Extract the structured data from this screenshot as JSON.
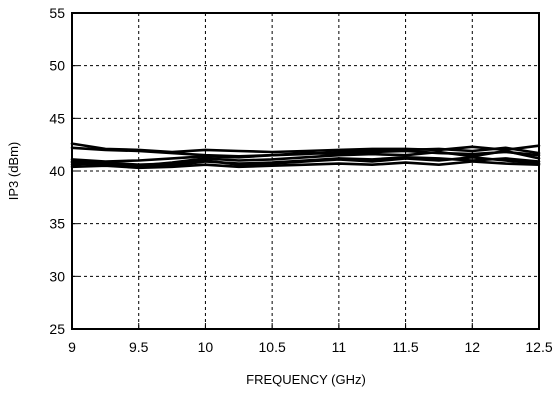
{
  "chart_data": {
    "type": "line",
    "title": "",
    "xlabel": "FREQUENCY (GHz)",
    "ylabel": "IP3  (dBm)",
    "xlim": [
      9,
      12.5
    ],
    "ylim": [
      25,
      55
    ],
    "grid": true,
    "x_ticks": [
      "9",
      "9.5",
      "10",
      "10.5",
      "11",
      "11.5",
      "12",
      "12.5"
    ],
    "y_ticks": [
      "25",
      "30",
      "35",
      "40",
      "45",
      "50",
      "55"
    ],
    "x": [
      9.0,
      9.25,
      9.5,
      9.75,
      10.0,
      10.25,
      10.5,
      10.75,
      11.0,
      11.25,
      11.5,
      11.75,
      12.0,
      12.25,
      12.5
    ],
    "series": [
      {
        "values": [
          42.6,
          42.1,
          42.0,
          41.8,
          42.0,
          41.9,
          41.8,
          41.9,
          42.0,
          42.1,
          42.1,
          42.0,
          42.3,
          42.0,
          42.4
        ]
      },
      {
        "values": [
          42.2,
          42.0,
          41.9,
          41.7,
          41.5,
          41.4,
          41.5,
          41.6,
          41.8,
          41.9,
          42.0,
          42.1,
          41.9,
          42.2,
          41.7
        ]
      },
      {
        "values": [
          41.1,
          40.9,
          41.0,
          41.2,
          41.4,
          41.3,
          41.5,
          41.7,
          41.6,
          41.8,
          41.9,
          41.7,
          41.6,
          41.8,
          41.5
        ]
      },
      {
        "values": [
          40.9,
          40.7,
          40.5,
          40.8,
          41.2,
          41.0,
          41.1,
          41.3,
          41.5,
          41.6,
          41.5,
          41.8,
          41.4,
          41.9,
          41.2
        ]
      },
      {
        "values": [
          40.8,
          40.6,
          40.4,
          40.5,
          40.9,
          40.7,
          40.8,
          41.0,
          41.2,
          41.1,
          41.3,
          41.2,
          41.0,
          41.2,
          40.9
        ]
      },
      {
        "values": [
          40.6,
          40.8,
          40.6,
          40.7,
          41.0,
          40.6,
          40.7,
          40.9,
          41.1,
          40.9,
          41.2,
          41.0,
          41.3,
          41.0,
          40.7
        ]
      },
      {
        "values": [
          40.4,
          40.5,
          40.3,
          40.4,
          40.6,
          40.4,
          40.5,
          40.6,
          40.7,
          40.6,
          40.8,
          40.6,
          40.9,
          40.7,
          40.6
        ]
      }
    ]
  }
}
